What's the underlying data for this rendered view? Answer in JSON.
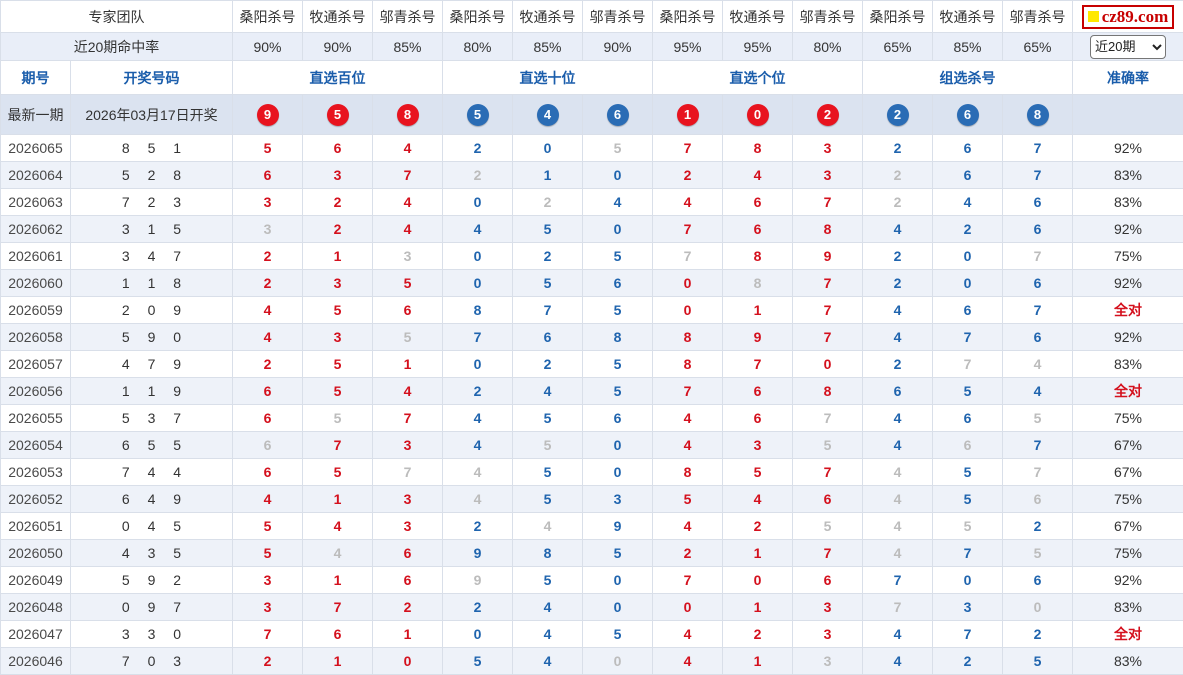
{
  "logo": {
    "text": "cz89.com"
  },
  "header": {
    "team_label": "专家团队",
    "hit_rate_label": "近20期命中率",
    "experts": [
      "桑阳杀号",
      "牧通杀号",
      "邬青杀号",
      "桑阳杀号",
      "牧通杀号",
      "邬青杀号",
      "桑阳杀号",
      "牧通杀号",
      "邬青杀号",
      "桑阳杀号",
      "牧通杀号",
      "邬青杀号"
    ],
    "hit_rates": [
      "90%",
      "90%",
      "85%",
      "80%",
      "85%",
      "90%",
      "95%",
      "95%",
      "80%",
      "65%",
      "85%",
      "65%"
    ],
    "period_select": {
      "value": "近20期"
    },
    "col_period": "期号",
    "col_numbers": "开奖号码",
    "groups": [
      "直选百位",
      "直选十位",
      "直选个位",
      "组选杀号"
    ],
    "col_accuracy": "准确率"
  },
  "latest": {
    "label": "最新一期",
    "date": "2026年03月17日开奖",
    "ball_values": [
      "9",
      "5",
      "8",
      "5",
      "4",
      "6",
      "1",
      "0",
      "2",
      "2",
      "6",
      "8"
    ],
    "ball_colors": [
      "red",
      "red",
      "red",
      "blue",
      "blue",
      "blue",
      "red",
      "red",
      "red",
      "blue",
      "blue",
      "blue"
    ]
  },
  "rows": [
    {
      "period": "2026065",
      "draw": "8 5 1",
      "kills": [
        "5",
        "6",
        "4",
        "2",
        "0",
        "5",
        "7",
        "8",
        "3",
        "2",
        "6",
        "7"
      ],
      "miss": [
        5
      ],
      "acc": "92%",
      "full": false
    },
    {
      "period": "2026064",
      "draw": "5 2 8",
      "kills": [
        "6",
        "3",
        "7",
        "2",
        "1",
        "0",
        "2",
        "4",
        "3",
        "2",
        "6",
        "7"
      ],
      "miss": [
        3,
        9
      ],
      "acc": "83%",
      "full": false
    },
    {
      "period": "2026063",
      "draw": "7 2 3",
      "kills": [
        "3",
        "2",
        "4",
        "0",
        "2",
        "4",
        "4",
        "6",
        "7",
        "2",
        "4",
        "6"
      ],
      "miss": [
        4,
        9
      ],
      "acc": "83%",
      "full": false
    },
    {
      "period": "2026062",
      "draw": "3 1 5",
      "kills": [
        "3",
        "2",
        "4",
        "4",
        "5",
        "0",
        "7",
        "6",
        "8",
        "4",
        "2",
        "6"
      ],
      "miss": [
        0
      ],
      "acc": "92%",
      "full": false
    },
    {
      "period": "2026061",
      "draw": "3 4 7",
      "kills": [
        "2",
        "1",
        "3",
        "0",
        "2",
        "5",
        "7",
        "8",
        "9",
        "2",
        "0",
        "7"
      ],
      "miss": [
        2,
        6,
        11
      ],
      "acc": "75%",
      "full": false
    },
    {
      "period": "2026060",
      "draw": "1 1 8",
      "kills": [
        "2",
        "3",
        "5",
        "0",
        "5",
        "6",
        "0",
        "8",
        "7",
        "2",
        "0",
        "6"
      ],
      "miss": [
        7
      ],
      "acc": "92%",
      "full": false
    },
    {
      "period": "2026059",
      "draw": "2 0 9",
      "kills": [
        "4",
        "5",
        "6",
        "8",
        "7",
        "5",
        "0",
        "1",
        "7",
        "4",
        "6",
        "7"
      ],
      "miss": [],
      "acc": "全对",
      "full": true
    },
    {
      "period": "2026058",
      "draw": "5 9 0",
      "kills": [
        "4",
        "3",
        "5",
        "7",
        "6",
        "8",
        "8",
        "9",
        "7",
        "4",
        "7",
        "6"
      ],
      "miss": [
        2
      ],
      "acc": "92%",
      "full": false
    },
    {
      "period": "2026057",
      "draw": "4 7 9",
      "kills": [
        "2",
        "5",
        "1",
        "0",
        "2",
        "5",
        "8",
        "7",
        "0",
        "2",
        "7",
        "4"
      ],
      "miss": [
        10,
        11
      ],
      "acc": "83%",
      "full": false
    },
    {
      "period": "2026056",
      "draw": "1 1 9",
      "kills": [
        "6",
        "5",
        "4",
        "2",
        "4",
        "5",
        "7",
        "6",
        "8",
        "6",
        "5",
        "4"
      ],
      "miss": [],
      "acc": "全对",
      "full": true
    },
    {
      "period": "2026055",
      "draw": "5 3 7",
      "kills": [
        "6",
        "5",
        "7",
        "4",
        "5",
        "6",
        "4",
        "6",
        "7",
        "4",
        "6",
        "5"
      ],
      "miss": [
        1,
        8,
        11
      ],
      "acc": "75%",
      "full": false
    },
    {
      "period": "2026054",
      "draw": "6 5 5",
      "kills": [
        "6",
        "7",
        "3",
        "4",
        "5",
        "0",
        "4",
        "3",
        "5",
        "4",
        "6",
        "7"
      ],
      "miss": [
        0,
        4,
        8,
        10
      ],
      "acc": "67%",
      "full": false
    },
    {
      "period": "2026053",
      "draw": "7 4 4",
      "kills": [
        "6",
        "5",
        "7",
        "4",
        "5",
        "0",
        "8",
        "5",
        "7",
        "4",
        "5",
        "7"
      ],
      "miss": [
        2,
        3,
        9,
        11
      ],
      "acc": "67%",
      "full": false
    },
    {
      "period": "2026052",
      "draw": "6 4 9",
      "kills": [
        "4",
        "1",
        "3",
        "4",
        "5",
        "3",
        "5",
        "4",
        "6",
        "4",
        "5",
        "6"
      ],
      "miss": [
        3,
        9,
        11
      ],
      "acc": "75%",
      "full": false
    },
    {
      "period": "2026051",
      "draw": "0 4 5",
      "kills": [
        "5",
        "4",
        "3",
        "2",
        "4",
        "9",
        "4",
        "2",
        "5",
        "4",
        "5",
        "2"
      ],
      "miss": [
        4,
        8,
        9,
        10
      ],
      "acc": "67%",
      "full": false
    },
    {
      "period": "2026050",
      "draw": "4 3 5",
      "kills": [
        "5",
        "4",
        "6",
        "9",
        "8",
        "5",
        "2",
        "1",
        "7",
        "4",
        "7",
        "5"
      ],
      "miss": [
        1,
        9,
        11
      ],
      "acc": "75%",
      "full": false
    },
    {
      "period": "2026049",
      "draw": "5 9 2",
      "kills": [
        "3",
        "1",
        "6",
        "9",
        "5",
        "0",
        "7",
        "0",
        "6",
        "7",
        "0",
        "6"
      ],
      "miss": [
        3
      ],
      "acc": "92%",
      "full": false
    },
    {
      "period": "2026048",
      "draw": "0 9 7",
      "kills": [
        "3",
        "7",
        "2",
        "2",
        "4",
        "0",
        "0",
        "1",
        "3",
        "7",
        "3",
        "0"
      ],
      "miss": [
        9,
        11
      ],
      "acc": "83%",
      "full": false
    },
    {
      "period": "2026047",
      "draw": "3 3 0",
      "kills": [
        "7",
        "6",
        "1",
        "0",
        "4",
        "5",
        "4",
        "2",
        "3",
        "4",
        "7",
        "2"
      ],
      "miss": [],
      "acc": "全对",
      "full": true
    },
    {
      "period": "2026046",
      "draw": "7 0 3",
      "kills": [
        "2",
        "1",
        "0",
        "5",
        "4",
        "0",
        "4",
        "1",
        "3",
        "4",
        "2",
        "5"
      ],
      "miss": [
        5,
        8
      ],
      "acc": "83%",
      "full": false
    }
  ]
}
